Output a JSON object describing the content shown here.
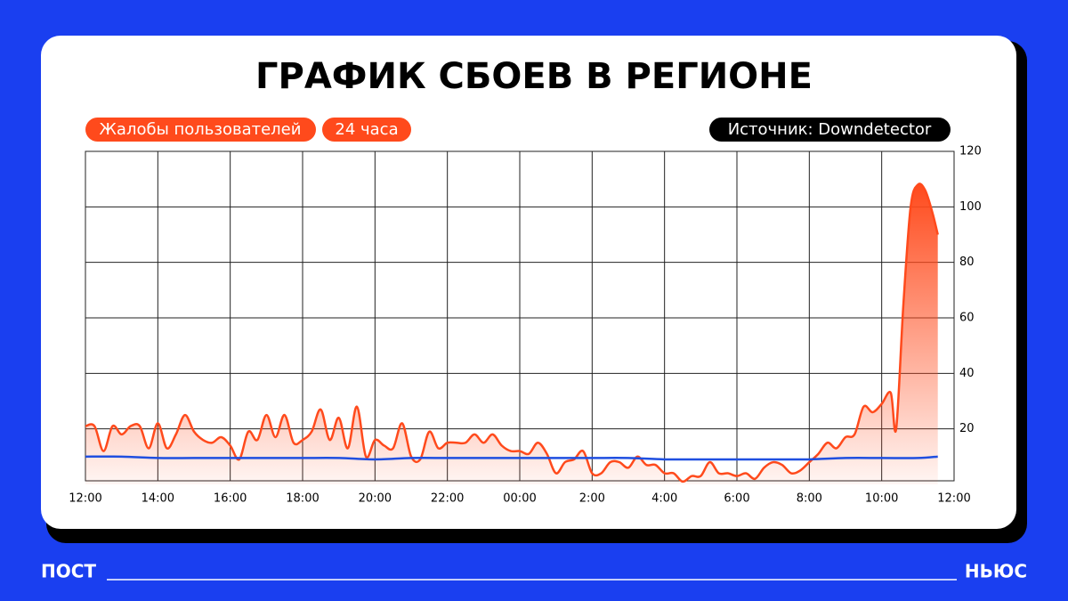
{
  "chart_data": {
    "type": "line",
    "title": "ГРАФИК СБОЕВ В РЕГИОНЕ",
    "labels": [
      "Жалобы пользователей",
      "24 часа"
    ],
    "source": "Источник: Downdetector",
    "brand_left": "ПОСТ",
    "brand_right": "НЬЮС",
    "xlim": [
      0,
      24
    ],
    "xticks": [
      {
        "value": 0,
        "label": "12:00"
      },
      {
        "value": 2,
        "label": "14:00"
      },
      {
        "value": 4,
        "label": "16:00"
      },
      {
        "value": 6,
        "label": "18:00"
      },
      {
        "value": 8,
        "label": "20:00"
      },
      {
        "value": 10,
        "label": "22:00"
      },
      {
        "value": 12,
        "label": "00:00"
      },
      {
        "value": 14,
        "label": "2:00"
      },
      {
        "value": 16,
        "label": "4:00"
      },
      {
        "value": 18,
        "label": "6:00"
      },
      {
        "value": 20,
        "label": "8:00"
      },
      {
        "value": 22,
        "label": "10:00"
      },
      {
        "value": 24,
        "label": "12:00"
      }
    ],
    "ylim": [
      0,
      120
    ],
    "yticks": [
      20,
      40,
      60,
      80,
      100,
      120
    ],
    "grid": true,
    "series": [
      {
        "color": "#ff4a1c",
        "fill": true,
        "x": [
          0,
          0.25,
          0.5,
          0.75,
          1,
          1.25,
          1.5,
          1.75,
          2,
          2.25,
          2.5,
          2.75,
          3,
          3.25,
          3.5,
          3.75,
          4,
          4.25,
          4.5,
          4.75,
          5,
          5.25,
          5.5,
          5.75,
          6,
          6.25,
          6.5,
          6.75,
          7,
          7.25,
          7.5,
          7.75,
          8,
          8.25,
          8.5,
          8.75,
          9,
          9.25,
          9.5,
          9.75,
          10,
          10.25,
          10.5,
          10.75,
          11,
          11.25,
          11.5,
          11.75,
          12,
          12.25,
          12.5,
          12.75,
          13,
          13.25,
          13.5,
          13.75,
          14,
          14.25,
          14.5,
          14.75,
          15,
          15.25,
          15.5,
          15.75,
          16,
          16.25,
          16.5,
          16.75,
          17,
          17.25,
          17.5,
          17.75,
          18,
          18.25,
          18.5,
          18.75,
          19,
          19.25,
          19.5,
          19.75,
          20,
          20.25,
          20.5,
          20.75,
          21,
          21.25,
          21.5,
          21.75,
          22,
          22.25,
          22.4,
          22.6,
          22.8,
          23,
          23.2,
          23.4,
          23.55
        ],
        "values": [
          21,
          21,
          12,
          21,
          18,
          21,
          21,
          13,
          22,
          13,
          18,
          25,
          19,
          16,
          15,
          17,
          14,
          9,
          19,
          16,
          25,
          17,
          25,
          15,
          16,
          19,
          27,
          16,
          24,
          13,
          28,
          10,
          16,
          14,
          13,
          22,
          10,
          9,
          19,
          13,
          15,
          15,
          15,
          18,
          15,
          18,
          14,
          12,
          12,
          11,
          15,
          11,
          4,
          8,
          9,
          12,
          4,
          4,
          8,
          8,
          6,
          10,
          7,
          7,
          4,
          4,
          1,
          3,
          3,
          8,
          4,
          4,
          3,
          4,
          2,
          6,
          8,
          7,
          4,
          5,
          8,
          11,
          15,
          13,
          17,
          18,
          28,
          26,
          29,
          33,
          20,
          65,
          100,
          108,
          106,
          98,
          90
        ]
      },
      {
        "color": "#1f4fe0",
        "fill": false,
        "x": [
          0,
          1,
          2,
          3,
          4,
          5,
          6,
          7,
          8,
          9,
          10,
          11,
          12,
          13,
          14,
          15,
          16,
          17,
          18,
          19,
          20,
          21,
          22,
          23,
          23.55
        ],
        "values": [
          10,
          10,
          9.5,
          9.5,
          9.5,
          9.5,
          9.5,
          9.5,
          9,
          9.5,
          9.5,
          9.5,
          9.5,
          9.5,
          9.5,
          9.5,
          9,
          9,
          9,
          9,
          9,
          9.5,
          9.5,
          9.5,
          10
        ]
      }
    ]
  }
}
